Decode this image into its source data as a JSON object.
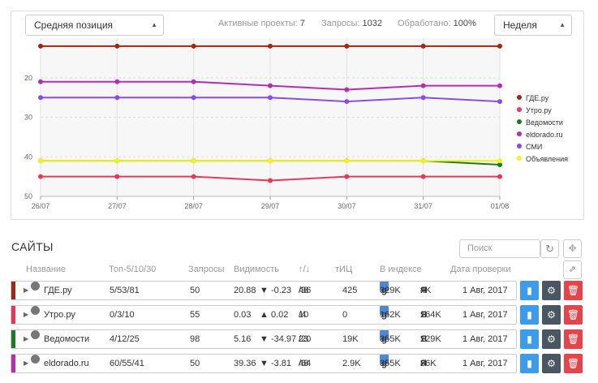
{
  "filters": {
    "metric_select": "Средняя позиция",
    "period_select": "Неделя"
  },
  "stats": {
    "active_label": "Активные проекты:",
    "active_value": "7",
    "queries_label": "Запросы:",
    "queries_value": "1032",
    "processed_label": "Обработано:",
    "processed_value": "100%"
  },
  "chart_data": {
    "type": "line",
    "x": [
      "26/07",
      "27/07",
      "28/07",
      "29/07",
      "30/07",
      "31/07",
      "01/08"
    ],
    "y_ticks": [
      20,
      30,
      40,
      50
    ],
    "ylim": [
      50,
      11
    ],
    "y_inverted": true,
    "grid": true,
    "legend_position": "right",
    "series": [
      {
        "name": "ГДЕ.ру",
        "color": "#9b2a16",
        "values": [
          12,
          12,
          12,
          12,
          12,
          12,
          12
        ]
      },
      {
        "name": "Утро.ру",
        "color": "#e8385a",
        "values": [
          45,
          45,
          45,
          46,
          45,
          45,
          45
        ]
      },
      {
        "name": "Ведомости",
        "color": "#1e7a24",
        "values": [
          41,
          41,
          41,
          41,
          41,
          41,
          42
        ]
      },
      {
        "name": "eldorado.ru",
        "color": "#b12fb3",
        "values": [
          21,
          21,
          21,
          22,
          23,
          22,
          22
        ]
      },
      {
        "name": "СМИ",
        "color": "#8a4ce6",
        "values": [
          25,
          25,
          25,
          25,
          26,
          25,
          26
        ]
      },
      {
        "name": "Объявления",
        "color": "#f3f315",
        "values": [
          41,
          41,
          41,
          41,
          41,
          41,
          41
        ]
      }
    ]
  },
  "sites": {
    "title": "САЙТЫ",
    "search_placeholder": "Поиск",
    "columns": [
      "Название",
      "Топ-5/10/30",
      "Запросы",
      "Видимость",
      "↑/↓",
      "тИЦ",
      "В индексе",
      "Дата проверки"
    ],
    "rows": [
      {
        "color": "#9b2a16",
        "name": "ГДЕ.ру",
        "top": "5/53/81",
        "queries": "50",
        "vis": "20.88",
        "vis_change": "▼ -0.23",
        "vis_dir": "down",
        "up": "48",
        "down": "36",
        "tic": "425",
        "google": "329K",
        "yandex": "4K",
        "date": "1 Авг, 2017"
      },
      {
        "color": "#e8385a",
        "name": "Утро.ру",
        "top": "0/3/10",
        "queries": "55",
        "vis": "0.03",
        "vis_change": "▲ 0.02",
        "vis_dir": "up",
        "up": "10",
        "down": "4",
        "tic": "0",
        "google": "162K",
        "yandex": "164K",
        "date": "1 Авг, 2017"
      },
      {
        "color": "#1e7a24",
        "name": "Ведомости",
        "top": "4/12/25",
        "queries": "98",
        "vis": "5.16",
        "vis_change": "▼ -34.97",
        "vis_dir": "down",
        "up": "23",
        "down": "20",
        "tic": "19K",
        "google": "355K",
        "yandex": "129K",
        "date": "1 Авг, 2017"
      },
      {
        "color": "#b12fb3",
        "name": "eldorado.ru",
        "top": "60/55/41",
        "queries": "50",
        "vis": "39.36",
        "vis_change": "▼ -3.81",
        "vis_dir": "down",
        "up": "48",
        "down": "64",
        "tic": "2.9K",
        "google": "355K",
        "yandex": "86K",
        "date": "1 Авг, 2017"
      }
    ]
  }
}
